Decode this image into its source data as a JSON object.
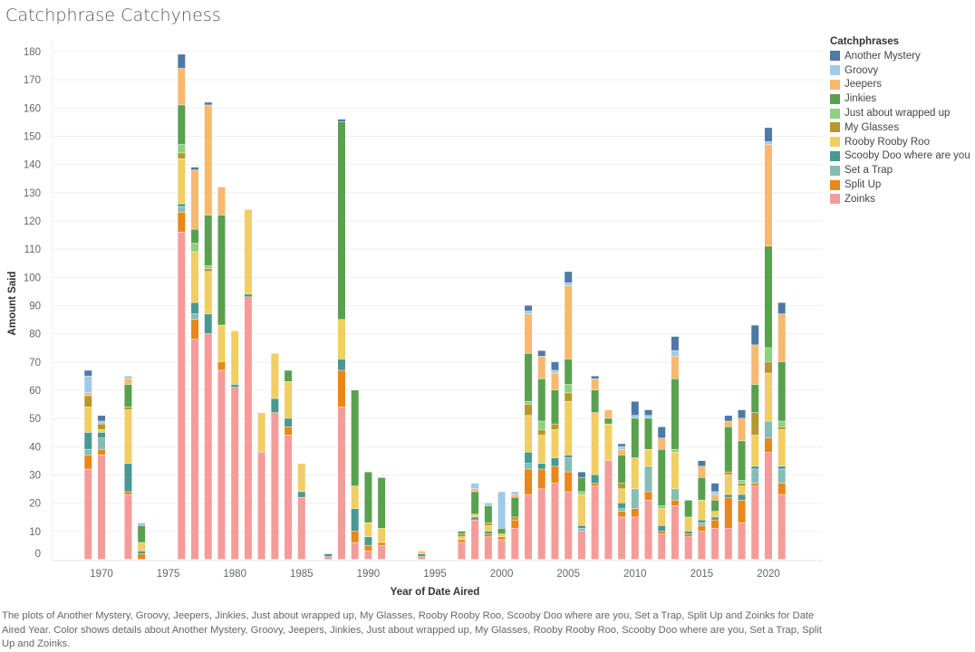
{
  "title": "Catchphrase Catchyness",
  "legend": {
    "title": "Catchphrases",
    "items": [
      {
        "label": "Another Mystery",
        "color": "#4e79a7"
      },
      {
        "label": "Groovy",
        "color": "#a0cbe8"
      },
      {
        "label": "Jeepers",
        "color": "#f6b96f"
      },
      {
        "label": "Jinkies",
        "color": "#59a14f"
      },
      {
        "label": "Just about wrapped up",
        "color": "#8cd17d"
      },
      {
        "label": "My Glasses",
        "color": "#b6992d"
      },
      {
        "label": "Rooby Rooby Roo",
        "color": "#f1ce63"
      },
      {
        "label": "Scooby Doo where are you",
        "color": "#499894"
      },
      {
        "label": "Set a Trap",
        "color": "#86bcb6"
      },
      {
        "label": "Split Up",
        "color": "#e8871a"
      },
      {
        "label": "Zoinks",
        "color": "#f59c9a"
      }
    ]
  },
  "caption": "The plots of Another Mystery, Groovy, Jeepers, Jinkies, Just about wrapped up, My Glasses, Rooby Rooby Roo, Scooby Doo where are you, Set a Trap, Split Up and Zoinks for Date Aired Year.  Color shows details about Another Mystery, Groovy, Jeepers, Jinkies, Just about wrapped up, My Glasses, Rooby Rooby Roo, Scooby Doo where are you, Set a Trap, Split Up and Zoinks.",
  "chart_data": {
    "type": "bar",
    "stacked": true,
    "title": "Catchphrase Catchyness",
    "xlabel": "Year of Date Aired",
    "ylabel": "Amount Said",
    "ylim": [
      0,
      180
    ],
    "yticks": [
      0,
      10,
      20,
      30,
      40,
      50,
      60,
      70,
      80,
      90,
      100,
      110,
      120,
      130,
      140,
      150,
      160,
      170,
      180
    ],
    "xlim": [
      1967,
      2023
    ],
    "xticks": [
      1970,
      1975,
      1980,
      1985,
      1990,
      1995,
      2000,
      2005,
      2010,
      2015,
      2020
    ],
    "grid": true,
    "legend_position": "right",
    "stack_order": [
      "Zoinks",
      "Split Up",
      "Set a Trap",
      "Scooby Doo where are you",
      "Rooby Rooby Roo",
      "My Glasses",
      "Just about wrapped up",
      "Jinkies",
      "Jeepers",
      "Groovy",
      "Another Mystery"
    ],
    "categories": [
      1969,
      1970,
      1972,
      1973,
      1976,
      1977,
      1978,
      1979,
      1980,
      1981,
      1982,
      1983,
      1984,
      1985,
      1987,
      1988,
      1989,
      1990,
      1991,
      1994,
      1997,
      1998,
      1999,
      2000,
      2001,
      2002,
      2003,
      2004,
      2005,
      2006,
      2007,
      2008,
      2009,
      2010,
      2011,
      2012,
      2013,
      2014,
      2015,
      2016,
      2017,
      2018,
      2019,
      2020,
      2021
    ],
    "series": [
      {
        "name": "Zoinks",
        "values": [
          32,
          37,
          23,
          0,
          116,
          78,
          80,
          67,
          61,
          93,
          38,
          52,
          44,
          22,
          1,
          54,
          6,
          3,
          5,
          1,
          6,
          14,
          8,
          7,
          11,
          23,
          25,
          27,
          24,
          10,
          26,
          35,
          15,
          15,
          21,
          9,
          19,
          8,
          10,
          11,
          11,
          13,
          26,
          38,
          23
        ]
      },
      {
        "name": "Split Up",
        "values": [
          5,
          2,
          1,
          2,
          7,
          7,
          0,
          3,
          0,
          0,
          0,
          0,
          3,
          0,
          0,
          13,
          4,
          2,
          1,
          0,
          1,
          0,
          1,
          1,
          3,
          9,
          7,
          6,
          7,
          0,
          1,
          0,
          2,
          3,
          3,
          1,
          2,
          1,
          2,
          3,
          11,
          8,
          1,
          5,
          4
        ]
      },
      {
        "name": "Set a Trap",
        "values": [
          2,
          4,
          0,
          0,
          2,
          2,
          0,
          0,
          0,
          0,
          0,
          0,
          0,
          0,
          0,
          0,
          0,
          0,
          0,
          0,
          0,
          0,
          0,
          0,
          0,
          2,
          0,
          0,
          5,
          1,
          0,
          0,
          1,
          7,
          9,
          0,
          4,
          0,
          1,
          0,
          0,
          0,
          5,
          6,
          5
        ]
      },
      {
        "name": "Scooby Doo where are you",
        "values": [
          6,
          2,
          10,
          1,
          1,
          4,
          7,
          0,
          1,
          1,
          0,
          5,
          3,
          2,
          1,
          4,
          8,
          3,
          0,
          1,
          0,
          1,
          1,
          0,
          0,
          4,
          2,
          3,
          1,
          1,
          3,
          0,
          2,
          0,
          0,
          2,
          0,
          1,
          1,
          1,
          1,
          2,
          1,
          0,
          1
        ]
      },
      {
        "name": "Rooby Rooby Roo",
        "values": [
          9,
          1,
          19,
          3,
          16,
          18,
          15,
          13,
          19,
          30,
          14,
          16,
          13,
          10,
          0,
          14,
          8,
          5,
          5,
          1,
          1,
          1,
          2,
          1,
          0,
          13,
          10,
          10,
          19,
          11,
          22,
          13,
          5,
          11,
          6,
          6,
          13,
          5,
          7,
          2,
          7,
          3,
          11,
          17,
          13
        ]
      },
      {
        "name": "My Glasses",
        "values": [
          4,
          2,
          1,
          0,
          2,
          0,
          1,
          0,
          0,
          0,
          0,
          0,
          0,
          0,
          0,
          0,
          0,
          0,
          0,
          0,
          1,
          0,
          1,
          0,
          1,
          4,
          2,
          2,
          3,
          0,
          0,
          0,
          2,
          0,
          0,
          0,
          0,
          0,
          0,
          0,
          1,
          1,
          8,
          4,
          1
        ]
      },
      {
        "name": "Just about wrapped up",
        "values": [
          0,
          0,
          0,
          0,
          3,
          3,
          1,
          0,
          0,
          0,
          0,
          0,
          0,
          0,
          0,
          0,
          0,
          0,
          0,
          0,
          0,
          0,
          0,
          0,
          0,
          1,
          3,
          0,
          3,
          1,
          0,
          0,
          0,
          0,
          0,
          1,
          1,
          0,
          0,
          0,
          0,
          1,
          0,
          5,
          2
        ]
      },
      {
        "name": "Jinkies",
        "values": [
          0,
          0,
          8,
          6,
          14,
          5,
          18,
          39,
          0,
          0,
          0,
          0,
          4,
          0,
          0,
          70,
          34,
          18,
          18,
          0,
          1,
          8,
          6,
          2,
          7,
          17,
          15,
          12,
          9,
          5,
          8,
          2,
          10,
          14,
          11,
          20,
          25,
          6,
          8,
          4,
          16,
          14,
          10,
          36,
          21
        ]
      },
      {
        "name": "Jeepers",
        "values": [
          1,
          0,
          2,
          0,
          13,
          21,
          39,
          10,
          0,
          0,
          0,
          0,
          0,
          0,
          0,
          0,
          0,
          0,
          0,
          0,
          0,
          1,
          0,
          0,
          1,
          14,
          8,
          6,
          26,
          0,
          4,
          3,
          2,
          0,
          0,
          4,
          8,
          0,
          4,
          2,
          2,
          8,
          14,
          36,
          17
        ]
      },
      {
        "name": "Groovy",
        "values": [
          6,
          1,
          1,
          1,
          0,
          0,
          0,
          0,
          0,
          0,
          0,
          0,
          0,
          0,
          0,
          0,
          0,
          0,
          0,
          0,
          0,
          2,
          1,
          13,
          1,
          1,
          0,
          1,
          1,
          0,
          0,
          0,
          1,
          1,
          1,
          0,
          2,
          0,
          0,
          1,
          0,
          0,
          0,
          1,
          0
        ]
      },
      {
        "name": "Another Mystery",
        "values": [
          2,
          2,
          0,
          0,
          5,
          1,
          1,
          0,
          0,
          0,
          0,
          0,
          0,
          0,
          0,
          1,
          0,
          0,
          0,
          0,
          0,
          0,
          0,
          0,
          0,
          2,
          2,
          3,
          4,
          2,
          1,
          0,
          1,
          5,
          2,
          4,
          5,
          0,
          2,
          3,
          2,
          3,
          7,
          5,
          4
        ]
      }
    ]
  }
}
